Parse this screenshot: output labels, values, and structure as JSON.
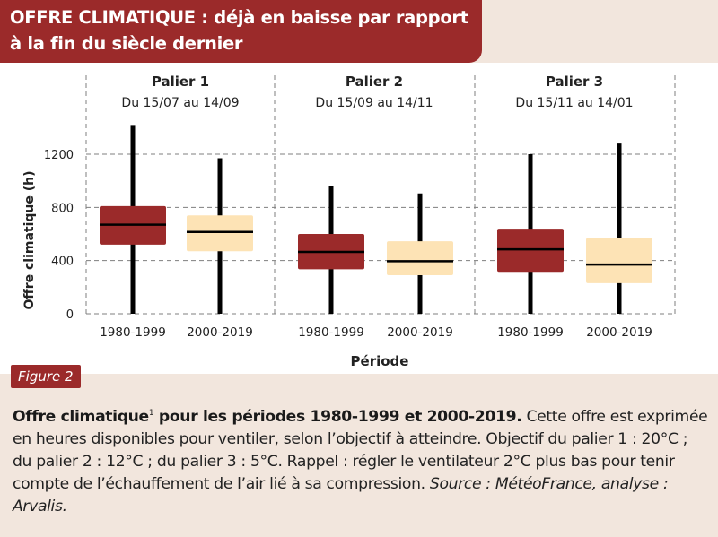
{
  "header": {
    "title_line1": "OFFRE CLIMATIQUE : déjà en baisse par rapport",
    "title_line2": "à la fin du siècle dernier"
  },
  "figure_label": "Figure 2",
  "caption": {
    "bold_part1": "Offre climatique",
    "footnote_marker": "1",
    "bold_part2": " pour les périodes 1980-1999 et 2000-2019.",
    "text_part1": " Cette offre est exprimée en heures disponibles pour ventiler, selon l’objectif à atteindre. Objectif du palier 1 : 20°C ; du palier 2 : 12°C ; du palier 3 : 5°C. Rappel : régler le ventilateur 2°C plus bas pour tenir compte de l’échauffement de l’air lié à sa compression.",
    "source": " Source : MétéoFrance, analyse : Arvalis."
  },
  "colors": {
    "period_1980": "#9b2a2a",
    "period_2000": "#fde3b5",
    "whisker": "#000000",
    "median": "#000000",
    "grid": "#7f7f7f",
    "title_banner": "#9b2a2a"
  },
  "chart_data": {
    "type": "box",
    "xlabel": "Période",
    "ylabel": "Offre climatique (h)",
    "ylim": [
      0,
      1450
    ],
    "yticks": [
      0,
      400,
      800,
      1200
    ],
    "grid": "dashed horizontal and vertical",
    "panels": [
      {
        "title": "Palier 1",
        "subtitle": "Du 15/07 au 14/09",
        "boxes": [
          {
            "period": "1980-1999",
            "min": 0,
            "q1": 520,
            "median": 670,
            "q3": 810,
            "max": 1420
          },
          {
            "period": "2000-2019",
            "min": 0,
            "q1": 470,
            "median": 615,
            "q3": 740,
            "max": 1170
          }
        ]
      },
      {
        "title": "Palier 2",
        "subtitle": "Du 15/09 au 14/11",
        "boxes": [
          {
            "period": "1980-1999",
            "min": 0,
            "q1": 335,
            "median": 465,
            "q3": 600,
            "max": 960
          },
          {
            "period": "2000-2019",
            "min": 0,
            "q1": 290,
            "median": 395,
            "q3": 545,
            "max": 905
          }
        ]
      },
      {
        "title": "Palier 3",
        "subtitle": "Du 15/11 au 14/01",
        "boxes": [
          {
            "period": "1980-1999",
            "min": 0,
            "q1": 315,
            "median": 485,
            "q3": 640,
            "max": 1200
          },
          {
            "period": "2000-2019",
            "min": 0,
            "q1": 230,
            "median": 370,
            "q3": 570,
            "max": 1280
          }
        ]
      }
    ]
  }
}
